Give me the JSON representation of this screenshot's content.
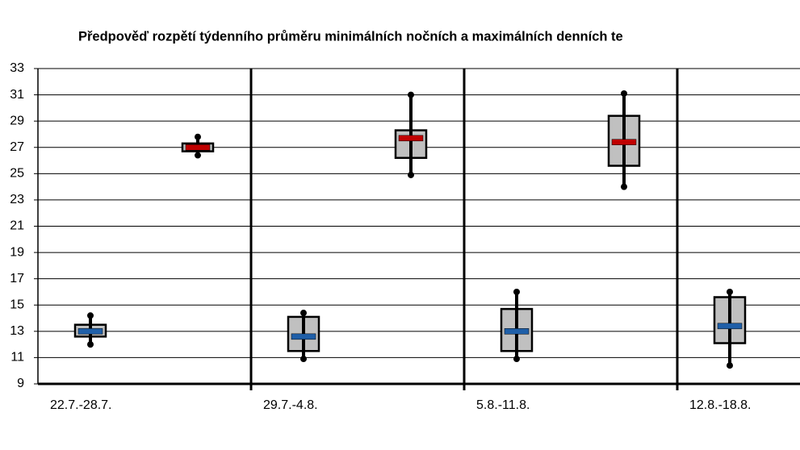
{
  "chart_data": {
    "type": "box",
    "title": "Předpověď rozpětí týdenního průměru minimálních nočních a maximálních denních te",
    "categories": [
      "22.7.-28.7.",
      "29.7.-4.8.",
      "5.8.-11.8.",
      "12.8.-18.8."
    ],
    "series": [
      {
        "color": "#1f5fa8",
        "boxes": [
          {
            "low": 12.0,
            "q1": 12.6,
            "median": 13.0,
            "q3": 13.5,
            "high": 14.2
          },
          {
            "low": 10.9,
            "q1": 11.5,
            "median": 12.6,
            "q3": 14.1,
            "high": 14.4
          },
          {
            "low": 10.9,
            "q1": 11.5,
            "median": 13.0,
            "q3": 14.7,
            "high": 16.0
          },
          {
            "low": 10.4,
            "q1": 12.1,
            "median": 13.4,
            "q3": 15.6,
            "high": 16.0
          }
        ]
      },
      {
        "color": "#c00000",
        "boxes": [
          {
            "low": 26.4,
            "q1": 26.7,
            "median": 27.0,
            "q3": 27.3,
            "high": 27.8
          },
          {
            "low": 24.9,
            "q1": 26.2,
            "median": 27.7,
            "q3": 28.3,
            "high": 31.0
          },
          {
            "low": 24.0,
            "q1": 25.6,
            "median": 27.4,
            "q3": 29.4,
            "high": 31.1
          },
          null
        ]
      }
    ],
    "box_fill": "#c0c0c0",
    "ylim": [
      9,
      33
    ],
    "yticks": [
      9,
      11,
      13,
      15,
      17,
      19,
      21,
      23,
      25,
      27,
      29,
      31,
      33
    ],
    "grid": true
  }
}
